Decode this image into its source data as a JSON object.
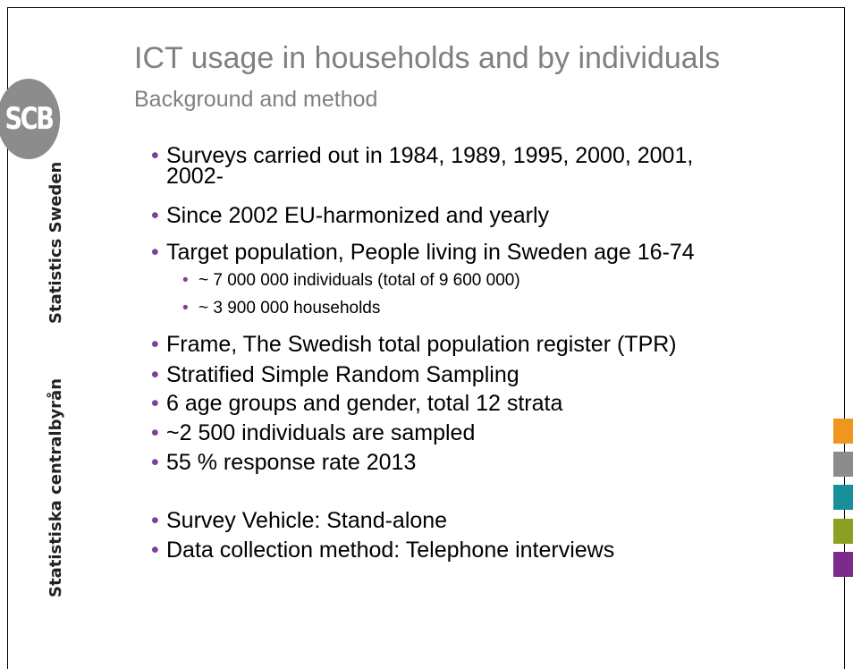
{
  "slide": {
    "logo": "SCB",
    "side_texts": [
      "Statistics Sweden",
      "Statistiska centralbyrån"
    ],
    "title": "ICT usage in households and by individuals",
    "subtitle": "Background and method",
    "bullets": [
      {
        "text": "Surveys carried out in 1984, 1989, 1995, 2000, 2001, 2002-"
      },
      {
        "text": "Since 2002 EU-harmonized and yearly"
      },
      {
        "text": "Target population, People living in Sweden age 16-74",
        "sub": [
          "~ 7 000 000 individuals (total of 9 600 000)",
          "~ 3 900 000 households"
        ]
      },
      {
        "text": "Frame, The Swedish total population register (TPR)"
      },
      {
        "text": "Stratified Simple Random Sampling"
      },
      {
        "text": "6 age groups and gender, total 12 strata"
      },
      {
        "text": "~2 500 individuals are sampled"
      },
      {
        "text": "55 % response rate 2013"
      },
      {
        "text": "Survey Vehicle: Stand-alone"
      },
      {
        "text": "Data collection method: Telephone interviews"
      }
    ]
  }
}
